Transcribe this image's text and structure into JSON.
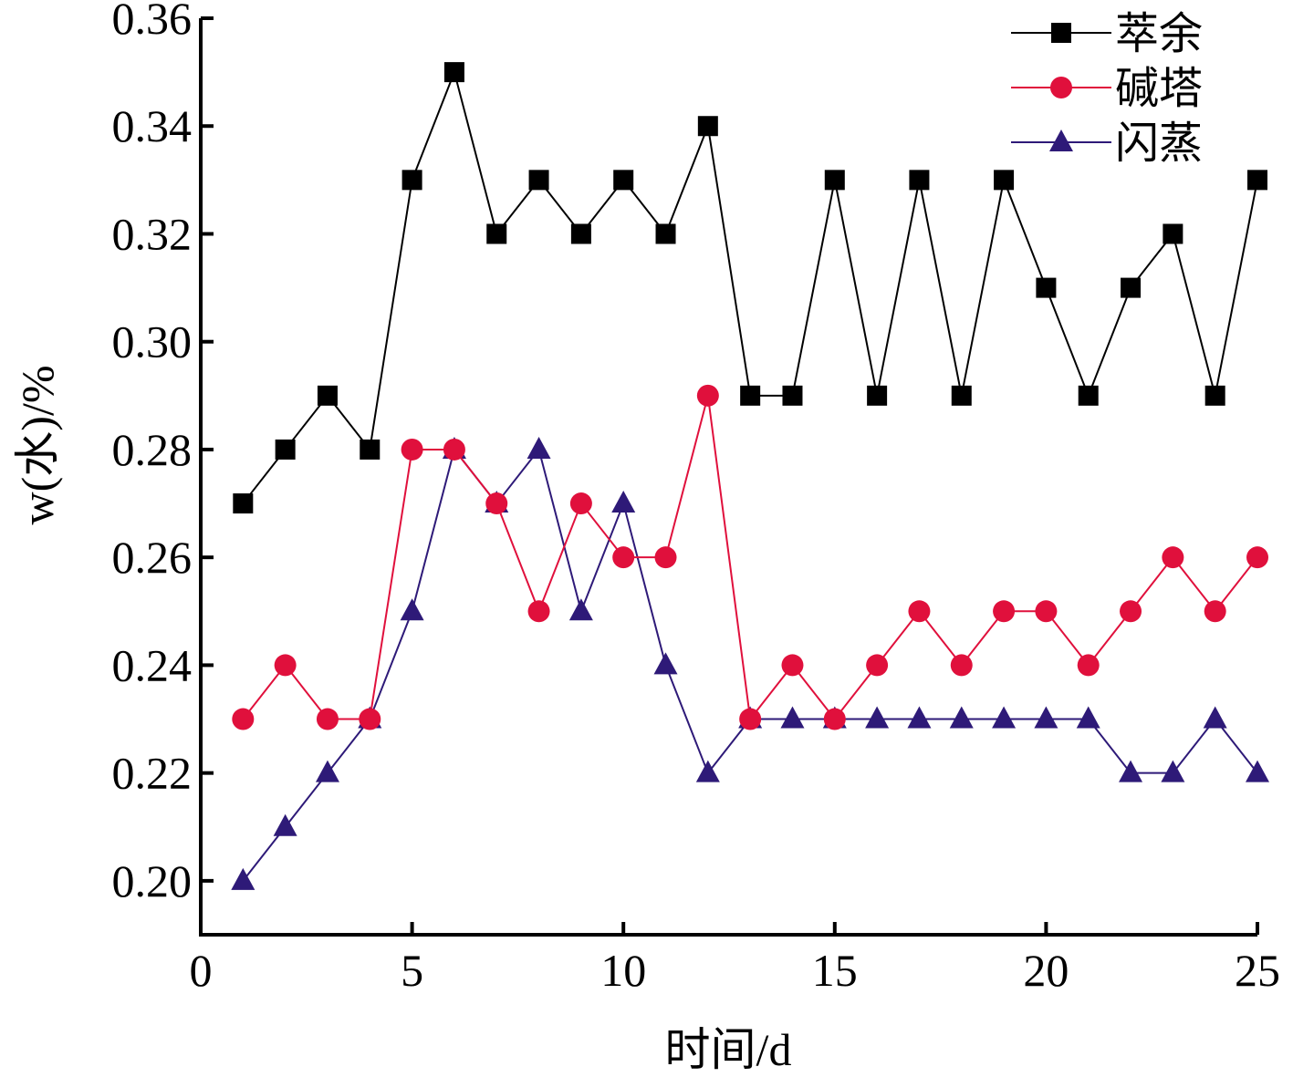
{
  "chart_data": {
    "type": "line",
    "xlabel": "时间/d",
    "ylabel": "w(水)/%",
    "xlim": [
      0,
      25
    ],
    "ylim": [
      0.19,
      0.36
    ],
    "x_ticks": [
      0,
      5,
      10,
      15,
      20,
      25
    ],
    "x_tick_labels": [
      "0",
      "5",
      "10",
      "15",
      "20",
      "25"
    ],
    "y_ticks": [
      0.2,
      0.22,
      0.24,
      0.26,
      0.28,
      0.3,
      0.32,
      0.34,
      0.36
    ],
    "y_tick_labels": [
      "0.20",
      "0.22",
      "0.24",
      "0.26",
      "0.28",
      "0.30",
      "0.32",
      "0.34",
      "0.36"
    ],
    "grid": false,
    "legend_position": "top-right",
    "x": [
      1,
      2,
      3,
      4,
      5,
      6,
      7,
      8,
      9,
      10,
      11,
      12,
      13,
      14,
      15,
      16,
      17,
      18,
      19,
      20,
      21,
      22,
      23,
      24,
      25
    ],
    "series": [
      {
        "name": "萃余",
        "color": "#000000",
        "marker": "square",
        "values": [
          0.27,
          0.28,
          0.29,
          0.28,
          0.33,
          0.35,
          0.32,
          0.33,
          0.32,
          0.33,
          0.32,
          0.34,
          0.29,
          0.29,
          0.33,
          0.29,
          0.33,
          0.29,
          0.33,
          0.31,
          0.29,
          0.31,
          0.32,
          0.29,
          0.33
        ]
      },
      {
        "name": "碱塔",
        "color": "#e0103c",
        "marker": "circle",
        "values": [
          0.23,
          0.24,
          0.23,
          0.23,
          0.28,
          0.28,
          0.27,
          0.25,
          0.27,
          0.26,
          0.26,
          0.29,
          0.23,
          0.24,
          0.23,
          0.24,
          0.25,
          0.24,
          0.25,
          0.25,
          0.24,
          0.25,
          0.26,
          0.25,
          0.26
        ]
      },
      {
        "name": "闪蒸",
        "color": "#2e1a78",
        "marker": "triangle",
        "values": [
          0.2,
          0.21,
          0.22,
          0.23,
          0.25,
          0.28,
          0.27,
          0.28,
          0.25,
          0.27,
          0.24,
          0.22,
          0.23,
          0.23,
          0.23,
          0.23,
          0.23,
          0.23,
          0.23,
          0.23,
          0.23,
          0.22,
          0.22,
          0.23,
          0.22
        ]
      }
    ]
  }
}
